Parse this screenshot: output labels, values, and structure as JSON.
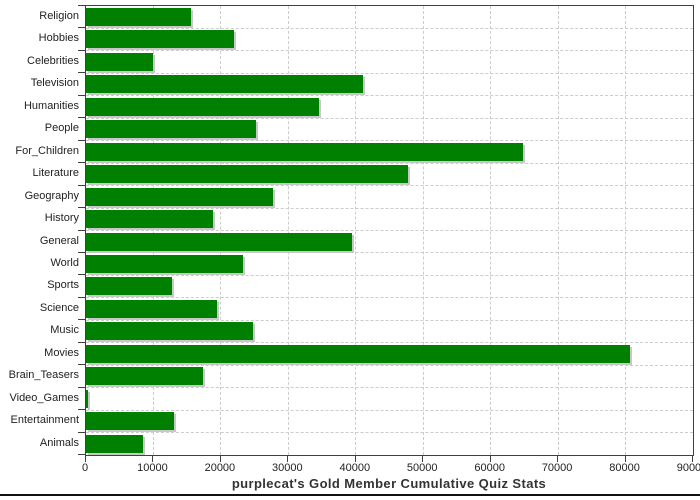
{
  "chart_data": {
    "type": "bar",
    "orientation": "horizontal",
    "title": "purplecat's Gold Member Cumulative Quiz Stats",
    "categories": [
      "Religion",
      "Hobbies",
      "Celebrities",
      "Television",
      "Humanities",
      "People",
      "For_Children",
      "Literature",
      "Geography",
      "History",
      "General",
      "World",
      "Sports",
      "Science",
      "Music",
      "Movies",
      "Brain_Teasers",
      "Video_Games",
      "Entertainment",
      "Animals"
    ],
    "values": [
      15600,
      22000,
      10000,
      41100,
      34600,
      25200,
      64800,
      47700,
      27700,
      18800,
      39500,
      23300,
      12700,
      19400,
      24700,
      80600,
      17300,
      350,
      13000,
      8400
    ],
    "xlabel": "",
    "ylabel": "",
    "xlim": [
      0,
      90000
    ],
    "x_ticks": [
      0,
      10000,
      20000,
      30000,
      40000,
      50000,
      60000,
      70000,
      80000,
      90000
    ],
    "x_tick_labels": [
      "0",
      "10000",
      "20000",
      "30000",
      "40000",
      "50000",
      "60000",
      "70000",
      "80000",
      "90000"
    ],
    "grid": "dashed-both-axes",
    "legend": "none",
    "bar_color": "#008000",
    "shadow_color": "#c8c8c8",
    "gridline_color": "#cccccc",
    "border_color": "#3f3f3f",
    "title_color": "#333333"
  }
}
